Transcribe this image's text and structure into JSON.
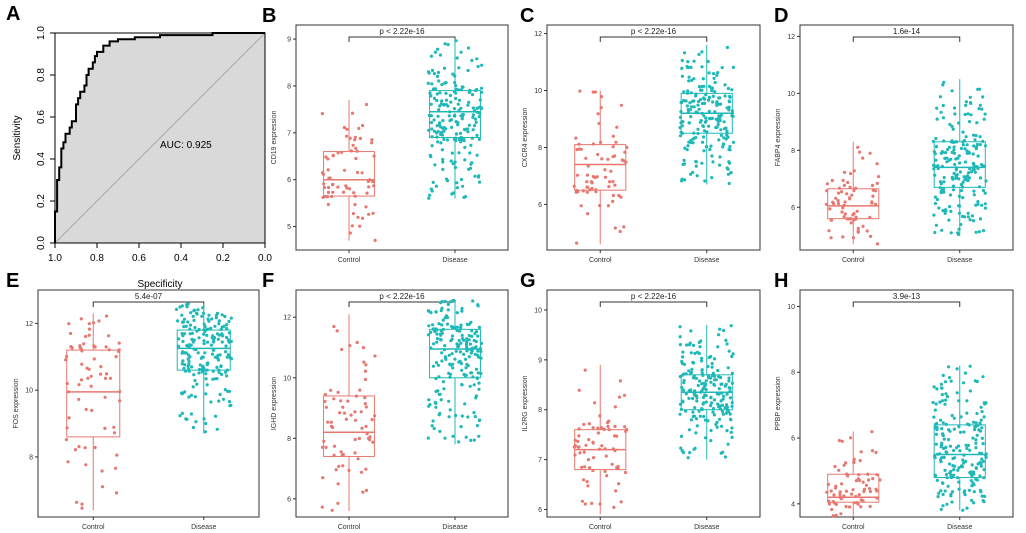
{
  "colors": {
    "control": "#e8776f",
    "disease": "#1fb8b8",
    "roc_fill": "#d9d9d9"
  },
  "chart_data": [
    {
      "panel": "A",
      "type": "roc",
      "xlabel": "Specificity",
      "ylabel": "Sensitivity",
      "x_ticks": [
        "1.0",
        "0.8",
        "0.6",
        "0.4",
        "0.2",
        "0.0"
      ],
      "y_ticks": [
        "0.0",
        "0.2",
        "0.4",
        "0.6",
        "0.8",
        "1.0"
      ],
      "annotation": "AUC: 0.925",
      "curve": [
        [
          1.0,
          0.0
        ],
        [
          1.0,
          0.15
        ],
        [
          0.99,
          0.15
        ],
        [
          0.99,
          0.3
        ],
        [
          0.98,
          0.3
        ],
        [
          0.98,
          0.36
        ],
        [
          0.97,
          0.36
        ],
        [
          0.97,
          0.45
        ],
        [
          0.96,
          0.45
        ],
        [
          0.96,
          0.48
        ],
        [
          0.95,
          0.48
        ],
        [
          0.95,
          0.52
        ],
        [
          0.93,
          0.52
        ],
        [
          0.93,
          0.55
        ],
        [
          0.92,
          0.55
        ],
        [
          0.92,
          0.58
        ],
        [
          0.9,
          0.58
        ],
        [
          0.9,
          0.66
        ],
        [
          0.89,
          0.66
        ],
        [
          0.89,
          0.69
        ],
        [
          0.88,
          0.69
        ],
        [
          0.88,
          0.72
        ],
        [
          0.86,
          0.72
        ],
        [
          0.86,
          0.75
        ],
        [
          0.85,
          0.75
        ],
        [
          0.85,
          0.8
        ],
        [
          0.84,
          0.8
        ],
        [
          0.84,
          0.83
        ],
        [
          0.82,
          0.83
        ],
        [
          0.82,
          0.86
        ],
        [
          0.81,
          0.86
        ],
        [
          0.81,
          0.89
        ],
        [
          0.8,
          0.89
        ],
        [
          0.8,
          0.91
        ],
        [
          0.77,
          0.91
        ],
        [
          0.77,
          0.94
        ],
        [
          0.74,
          0.94
        ],
        [
          0.74,
          0.96
        ],
        [
          0.7,
          0.96
        ],
        [
          0.7,
          0.97
        ],
        [
          0.62,
          0.97
        ],
        [
          0.62,
          0.98
        ],
        [
          0.5,
          0.98
        ],
        [
          0.5,
          0.99
        ],
        [
          0.25,
          0.99
        ],
        [
          0.25,
          1.0
        ],
        [
          0.0,
          1.0
        ]
      ]
    },
    {
      "panel": "B",
      "type": "box",
      "ylabel": "CD19 expression",
      "pvalue": "p < 2.22e-16",
      "categories": [
        "Control",
        "Disease"
      ],
      "ylim": [
        4.5,
        9.3
      ],
      "yticks": [
        5,
        6,
        7,
        8,
        9
      ],
      "boxes": [
        {
          "name": "Control",
          "whisker_low": 4.7,
          "q1": 5.65,
          "median": 6.0,
          "q3": 6.6,
          "whisker_high": 7.7
        },
        {
          "name": "Disease",
          "whisker_low": 5.6,
          "q1": 6.9,
          "median": 7.45,
          "q3": 7.9,
          "whisker_high": 9.0
        }
      ]
    },
    {
      "panel": "C",
      "type": "box",
      "ylabel": "CXCR4 expression",
      "pvalue": "p < 2.22e-16",
      "categories": [
        "Control",
        "Disease"
      ],
      "ylim": [
        4.4,
        12.3
      ],
      "yticks": [
        6,
        8,
        10,
        12
      ],
      "boxes": [
        {
          "name": "Control",
          "whisker_low": 4.6,
          "q1": 6.5,
          "median": 7.4,
          "q3": 8.1,
          "whisker_high": 10.0
        },
        {
          "name": "Disease",
          "whisker_low": 6.7,
          "q1": 8.5,
          "median": 9.2,
          "q3": 9.9,
          "whisker_high": 11.6
        }
      ]
    },
    {
      "panel": "D",
      "type": "box",
      "ylabel": "FABP4 expression",
      "pvalue": "1.6e-14",
      "categories": [
        "Control",
        "Disease"
      ],
      "ylim": [
        4.5,
        12.4
      ],
      "yticks": [
        6,
        8,
        10,
        12
      ],
      "boxes": [
        {
          "name": "Control",
          "whisker_low": 4.7,
          "q1": 5.6,
          "median": 6.05,
          "q3": 6.65,
          "whisker_high": 8.3
        },
        {
          "name": "Disease",
          "whisker_low": 5.0,
          "q1": 6.7,
          "median": 7.4,
          "q3": 8.3,
          "whisker_high": 10.5
        }
      ]
    },
    {
      "panel": "E",
      "type": "box",
      "ylabel": "FOS expression",
      "pvalue": "5.4e-07",
      "categories": [
        "Control",
        "Disease"
      ],
      "ylim": [
        6.2,
        13.0
      ],
      "yticks": [
        8,
        10,
        12
      ],
      "boxes": [
        {
          "name": "Control",
          "whisker_low": 6.4,
          "q1": 8.6,
          "median": 9.95,
          "q3": 11.2,
          "whisker_high": 12.3
        },
        {
          "name": "Disease",
          "whisker_low": 8.7,
          "q1": 10.6,
          "median": 11.25,
          "q3": 11.8,
          "whisker_high": 12.6
        }
      ]
    },
    {
      "panel": "F",
      "type": "box",
      "ylabel": "IGHD expression",
      "pvalue": "p < 2.22e-16",
      "categories": [
        "Control",
        "Disease"
      ],
      "ylim": [
        5.4,
        12.9
      ],
      "yticks": [
        6,
        8,
        10,
        12
      ],
      "boxes": [
        {
          "name": "Control",
          "whisker_low": 5.6,
          "q1": 7.4,
          "median": 8.2,
          "q3": 9.4,
          "whisker_high": 12.1
        },
        {
          "name": "Disease",
          "whisker_low": 7.8,
          "q1": 10.0,
          "median": 10.95,
          "q3": 11.6,
          "whisker_high": 12.6
        }
      ]
    },
    {
      "panel": "G",
      "type": "box",
      "ylabel": "IL2RG expression",
      "pvalue": "p < 2.22e-16",
      "categories": [
        "Control",
        "Disease"
      ],
      "ylim": [
        5.85,
        10.4
      ],
      "yticks": [
        6,
        7,
        8,
        9,
        10
      ],
      "boxes": [
        {
          "name": "Control",
          "whisker_low": 5.9,
          "q1": 6.8,
          "median": 7.2,
          "q3": 7.6,
          "whisker_high": 8.9
        },
        {
          "name": "Disease",
          "whisker_low": 7.0,
          "q1": 8.0,
          "median": 8.35,
          "q3": 8.7,
          "whisker_high": 9.7
        }
      ]
    },
    {
      "panel": "H",
      "type": "box",
      "ylabel": "PPBP expression",
      "pvalue": "3.9e-13",
      "categories": [
        "Control",
        "Disease"
      ],
      "ylim": [
        3.6,
        10.5
      ],
      "yticks": [
        4,
        6,
        8,
        10
      ],
      "boxes": [
        {
          "name": "Control",
          "whisker_low": 3.6,
          "q1": 4.05,
          "median": 4.2,
          "q3": 4.9,
          "whisker_high": 6.2
        },
        {
          "name": "Disease",
          "whisker_low": 3.8,
          "q1": 4.8,
          "median": 5.5,
          "q3": 6.4,
          "whisker_high": 8.2
        }
      ]
    }
  ]
}
